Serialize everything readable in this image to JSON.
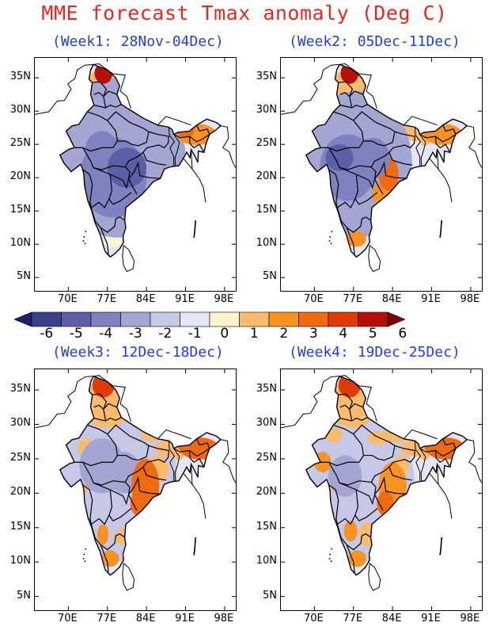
{
  "title": "MME forecast Tmax anomaly (Deg C)",
  "panels": [
    {
      "label": "(Week1: 28Nov-04Dec)"
    },
    {
      "label": "(Week2: 05Dec-11Dec)"
    },
    {
      "label": "(Week3: 12Dec-18Dec)"
    },
    {
      "label": "(Week4: 19Dec-25Dec)"
    }
  ],
  "lat_ticks": [
    "35N",
    "30N",
    "25N",
    "20N",
    "15N",
    "10N",
    "5N"
  ],
  "lon_ticks": [
    "70E",
    "77E",
    "84E",
    "91E",
    "98E"
  ],
  "colorbar": {
    "labels": [
      "-6",
      "-5",
      "-4",
      "-3",
      "-2",
      "-1",
      "0",
      "1",
      "2",
      "3",
      "4",
      "5",
      "6"
    ],
    "colors": [
      "#1f1f66",
      "#3a3f8c",
      "#5a5fa8",
      "#7e82be",
      "#a3a6d3",
      "#c5c8e6",
      "#e4e6f6",
      "#fdf4cc",
      "#fbbb6c",
      "#f8931f",
      "#f06a10",
      "#e03c0a",
      "#b81008",
      "#7a0502"
    ]
  }
}
